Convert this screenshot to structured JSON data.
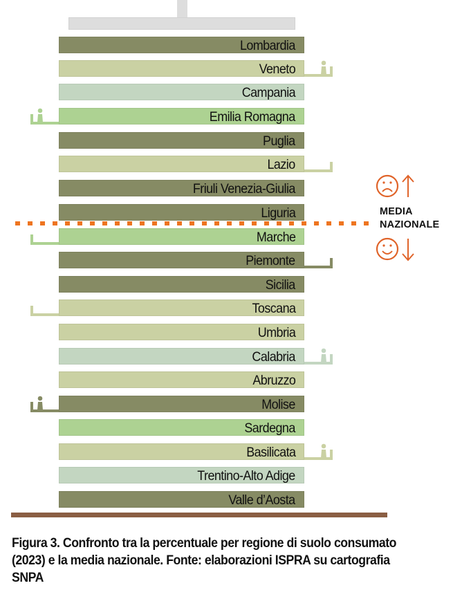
{
  "diagram": {
    "title": "Confronto tra la percentuale per regione di suolo consumato (2023) e la media nazionale",
    "colors": {
      "dark_olive": "#868b64",
      "pale_olive": "#cad1a3",
      "pale_sage": "#c3d6c1",
      "light_green": "#add292",
      "roof_gray": "#dddddd",
      "ground_brown": "#8a5e43",
      "median_orange": "#ee7520"
    },
    "regions": [
      {
        "name": "Lombardia",
        "color": "#868b64",
        "annex": "none"
      },
      {
        "name": "Veneto",
        "color": "#cad1a3",
        "annex": "right-person"
      },
      {
        "name": "Campania",
        "color": "#c3d6c1",
        "annex": "none"
      },
      {
        "name": "Emilia Romagna",
        "color": "#add292",
        "annex": "left-person"
      },
      {
        "name": "Puglia",
        "color": "#868b64",
        "annex": "none"
      },
      {
        "name": "Lazio",
        "color": "#cad1a3",
        "annex": "right-empty"
      },
      {
        "name": "Friuli Venezia-Giulia",
        "color": "#868b64",
        "annex": "none"
      },
      {
        "name": "Liguria",
        "color": "#868b64",
        "annex": "none"
      },
      {
        "name": "Marche",
        "color": "#add292",
        "annex": "left-empty"
      },
      {
        "name": "Piemonte",
        "color": "#868b64",
        "annex": "right-empty"
      },
      {
        "name": "Sicilia",
        "color": "#868b64",
        "annex": "none"
      },
      {
        "name": "Toscana",
        "color": "#cad1a3",
        "annex": "left-empty"
      },
      {
        "name": "Umbria",
        "color": "#cad1a3",
        "annex": "none"
      },
      {
        "name": "Calabria",
        "color": "#c3d6c1",
        "annex": "right-person"
      },
      {
        "name": "Abruzzo",
        "color": "#cad1a3",
        "annex": "none"
      },
      {
        "name": "Molise",
        "color": "#868b64",
        "annex": "left-person"
      },
      {
        "name": "Sardegna",
        "color": "#add292",
        "annex": "none"
      },
      {
        "name": "Basilicata",
        "color": "#cad1a3",
        "annex": "right-person"
      },
      {
        "name": "Trentino-Alto Adige",
        "color": "#c3d6c1",
        "annex": "none"
      },
      {
        "name": "Valle d’Aosta",
        "color": "#868b64",
        "annex": "none"
      }
    ],
    "median_line_after_index": 7,
    "legend": {
      "above_icon": "sad-face-icon",
      "above_arrow": "↑",
      "label_line1": "MEDIA",
      "label_line2": "NAZIONALE",
      "below_icon": "happy-face-icon",
      "below_arrow": "↓"
    }
  },
  "caption": {
    "text": "Figura 3. Confronto tra la percentuale per regione di suolo consumato (2023) e la media nazionale. Fonte: elaborazioni ISPRA su cartografia SNPA"
  }
}
